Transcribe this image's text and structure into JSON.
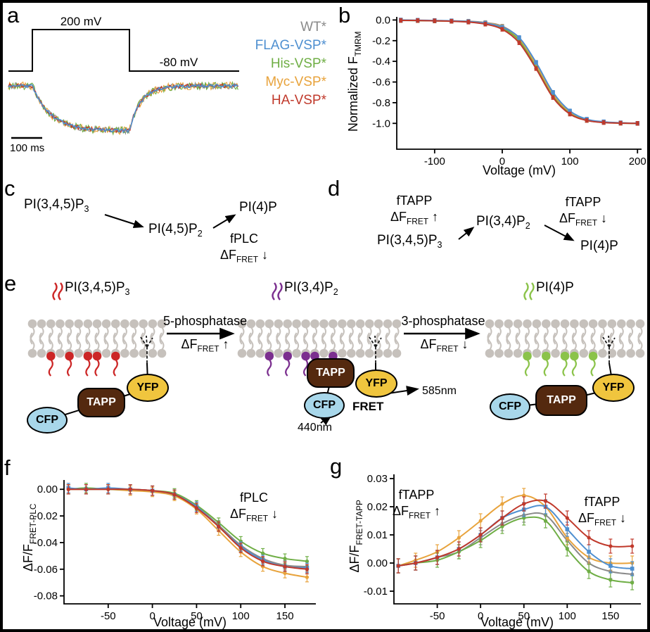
{
  "panels": {
    "a": "a",
    "b": "b",
    "c": "c",
    "d": "d",
    "e": "e",
    "f": "f",
    "g": "g"
  },
  "panel_a": {
    "step_high": "200 mV",
    "step_low": "-80 mV",
    "scalebar": "100 ms",
    "legend": [
      {
        "label": "WT*",
        "color": "#8a8a8a"
      },
      {
        "label": "FLAG-VSP*",
        "color": "#4e8fd0"
      },
      {
        "label": "His-VSP*",
        "color": "#6fae45"
      },
      {
        "label": "Myc-VSP*",
        "color": "#e8a33c"
      },
      {
        "label": "HA-VSP*",
        "color": "#c0392b"
      }
    ]
  },
  "panel_c": {
    "pip3": {
      "main": "PI(3,4,5)P",
      "sub": "3"
    },
    "pip2": {
      "main": "PI(4,5)P",
      "sub": "2"
    },
    "pi4p": "PI(4)P",
    "enzyme": "fPLC",
    "dfret": {
      "main": "ΔF",
      "sub": "FRET",
      "arrow": "↓"
    }
  },
  "panel_d": {
    "pip3": {
      "main": "PI(3,4,5)P",
      "sub": "3"
    },
    "pi34p2": {
      "main": "PI(3,4)P",
      "sub": "2"
    },
    "pi4p": "PI(4)P",
    "tag_up": {
      "line1": "fTAPP",
      "main": "ΔF",
      "sub": "FRET",
      "arrow": "↑"
    },
    "tag_down": {
      "line1": "fTAPP",
      "main": "ΔF",
      "sub": "FRET",
      "arrow": "↓"
    }
  },
  "panel_e": {
    "lipid1": {
      "main": "PI(3,4,5)P",
      "sub": "3",
      "color": "#cc2626"
    },
    "lipid2": {
      "main": "PI(3,4)P",
      "sub": "2",
      "color": "#7b2f8f"
    },
    "lipid3": {
      "main": "PI(4)P",
      "sub": "",
      "color": "#8bc34a"
    },
    "step1": {
      "line1": "5-phosphatase",
      "main": "ΔF",
      "sub": "FRET",
      "arrow": "↑"
    },
    "step2": {
      "line1": "3-phosphatase",
      "main": "ΔF",
      "sub": "FRET",
      "arrow": "↓"
    },
    "cfp": "CFP",
    "tapp": "TAPP",
    "yfp": "YFP",
    "fret": "FRET",
    "nm440": "440nm",
    "nm585": "585nm",
    "cfp_color": "#a8d7ea",
    "tapp_color": "#54290f",
    "yfp_color": "#f0c53e",
    "membrane_color": "#c6c1bc"
  },
  "chart_data": [
    {
      "id": "b",
      "type": "line",
      "xlabel": "Voltage (mV)",
      "ylabel_main": "Normalized F",
      "ylabel_sub": "TMRM",
      "xlim": [
        -156,
        206
      ],
      "ylim": [
        -1.25,
        0.03
      ],
      "xticks": [
        -100,
        0,
        100,
        200
      ],
      "xtick_labels": [
        "-100",
        "0",
        "100",
        "200"
      ],
      "yticks": [
        0,
        -0.2,
        -0.4,
        -0.6,
        -0.8,
        -1.0
      ],
      "ytick_labels": [
        "0.0",
        "-0.2",
        "-0.4",
        "-0.6",
        "-0.8",
        "-1.0"
      ],
      "err": 0.018,
      "x": [
        -150,
        -125,
        -100,
        -75,
        -50,
        -25,
        0,
        25,
        50,
        75,
        100,
        125,
        150,
        175,
        200
      ],
      "series": [
        {
          "name": "WT*",
          "color": "#8a8a8a",
          "marker": "circle",
          "y": [
            -0.005,
            -0.005,
            -0.008,
            -0.01,
            -0.012,
            -0.025,
            -0.06,
            -0.18,
            -0.44,
            -0.73,
            -0.9,
            -0.97,
            -0.99,
            -0.995,
            -1.0
          ]
        },
        {
          "name": "Myc-VSP*",
          "color": "#e8a33c",
          "marker": "circle",
          "y": [
            -0.002,
            -0.004,
            -0.007,
            -0.01,
            -0.015,
            -0.028,
            -0.065,
            -0.185,
            -0.43,
            -0.72,
            -0.895,
            -0.965,
            -0.988,
            -0.996,
            -1.0
          ]
        },
        {
          "name": "His-VSP*",
          "color": "#6fae45",
          "marker": "circle",
          "y": [
            -0.003,
            -0.006,
            -0.008,
            -0.012,
            -0.018,
            -0.035,
            -0.08,
            -0.2,
            -0.46,
            -0.74,
            -0.905,
            -0.97,
            -0.99,
            -0.998,
            -1.0
          ]
        },
        {
          "name": "FLAG-VSP*",
          "color": "#4e8fd0",
          "marker": "square",
          "y": [
            0.0,
            -0.002,
            -0.005,
            -0.008,
            -0.015,
            -0.03,
            -0.07,
            -0.17,
            -0.41,
            -0.7,
            -0.88,
            -0.96,
            -0.985,
            -0.995,
            -1.0
          ]
        },
        {
          "name": "HA-VSP*",
          "color": "#c0392b",
          "marker": "circle",
          "y": [
            -0.004,
            -0.005,
            -0.008,
            -0.012,
            -0.02,
            -0.04,
            -0.09,
            -0.22,
            -0.47,
            -0.75,
            -0.91,
            -0.972,
            -0.992,
            -0.998,
            -1.0
          ]
        }
      ]
    },
    {
      "id": "f",
      "type": "line",
      "xlabel": "Voltage (mV)",
      "ylabel_main": "ΔF/F",
      "ylabel_sub": "FRET-PLC",
      "annotation": {
        "line1": "fPLC",
        "main": "ΔF",
        "sub": "FRET",
        "arrow": "↓"
      },
      "xlim": [
        -100,
        185
      ],
      "ylim": [
        -0.086,
        0.007
      ],
      "xticks": [
        -50,
        0,
        50,
        100,
        150
      ],
      "xtick_labels": [
        "-50",
        "0",
        "50",
        "100",
        "150"
      ],
      "yticks": [
        0,
        -0.02,
        -0.04,
        -0.06,
        -0.08
      ],
      "ytick_labels": [
        "0.00",
        "-0.02",
        "-0.04",
        "-0.06",
        "-0.08"
      ],
      "err": 0.0035,
      "x": [
        -95,
        -75,
        -50,
        -25,
        0,
        25,
        50,
        75,
        100,
        125,
        150,
        175
      ],
      "series": [
        {
          "name": "WT*",
          "color": "#8a8a8a",
          "marker": "circle",
          "y": [
            0.0,
            0.0,
            0.0,
            0.0,
            -0.001,
            -0.004,
            -0.013,
            -0.027,
            -0.042,
            -0.052,
            -0.057,
            -0.058
          ]
        },
        {
          "name": "Myc-VSP*",
          "color": "#e8a33c",
          "marker": "circle",
          "y": [
            0.0,
            0.0,
            0.0,
            -0.001,
            -0.002,
            -0.005,
            -0.015,
            -0.031,
            -0.047,
            -0.058,
            -0.063,
            -0.066
          ]
        },
        {
          "name": "His-VSP*",
          "color": "#6fae45",
          "marker": "circle",
          "y": [
            0.0,
            0.001,
            0.0,
            0.0,
            -0.001,
            -0.003,
            -0.012,
            -0.025,
            -0.039,
            -0.048,
            -0.052,
            -0.054
          ]
        },
        {
          "name": "FLAG-VSP*",
          "color": "#4e8fd0",
          "marker": "square",
          "y": [
            0.001,
            0.0,
            0.001,
            0.0,
            -0.001,
            -0.004,
            -0.013,
            -0.028,
            -0.043,
            -0.053,
            -0.058,
            -0.059
          ]
        },
        {
          "name": "HA-VSP*",
          "color": "#c0392b",
          "marker": "circle",
          "y": [
            0.0,
            0.0,
            0.0,
            0.0,
            -0.001,
            -0.004,
            -0.014,
            -0.028,
            -0.044,
            -0.054,
            -0.058,
            -0.06
          ]
        }
      ]
    },
    {
      "id": "g",
      "type": "line",
      "xlabel": "Voltage (mV)",
      "ylabel_main": "ΔF/F",
      "ylabel_sub": "FRET-TAPP",
      "annotation_left": {
        "line1": "fTAPP",
        "main": "ΔF",
        "sub": "FRET",
        "arrow": "↑"
      },
      "annotation_right": {
        "line1": "fTAPP",
        "main": "ΔF",
        "sub": "FRET",
        "arrow": "↓"
      },
      "xlim": [
        -100,
        185
      ],
      "ylim": [
        -0.0145,
        0.0315
      ],
      "xticks": [
        -50,
        0,
        50,
        100,
        150
      ],
      "xtick_labels": [
        "-50",
        "0",
        "50",
        "100",
        "150"
      ],
      "yticks": [
        0.03,
        0.02,
        0.01,
        0,
        -0.01
      ],
      "ytick_labels": [
        "0.03",
        "0.02",
        "0.01",
        "0.00",
        "-0.01"
      ],
      "err": 0.0025,
      "x": [
        -95,
        -75,
        -50,
        -25,
        0,
        25,
        50,
        75,
        100,
        125,
        150,
        175
      ],
      "series": [
        {
          "name": "WT*",
          "color": "#8a8a8a",
          "marker": "circle",
          "y": [
            -0.001,
            0.0,
            0.002,
            0.004,
            0.009,
            0.014,
            0.017,
            0.017,
            0.008,
            0.0,
            -0.003,
            -0.004
          ]
        },
        {
          "name": "Myc-VSP*",
          "color": "#e8a33c",
          "marker": "circle",
          "y": [
            -0.001,
            0.001,
            0.004,
            0.009,
            0.015,
            0.021,
            0.024,
            0.02,
            0.009,
            0.002,
            0.0,
            0.0
          ]
        },
        {
          "name": "His-VSP*",
          "color": "#6fae45",
          "marker": "circle",
          "y": [
            -0.001,
            0.0,
            0.001,
            0.004,
            0.008,
            0.013,
            0.016,
            0.015,
            0.005,
            -0.003,
            -0.006,
            -0.007
          ]
        },
        {
          "name": "FLAG-VSP*",
          "color": "#4e8fd0",
          "marker": "square",
          "y": [
            -0.001,
            0.0,
            0.002,
            0.005,
            0.01,
            0.016,
            0.019,
            0.02,
            0.012,
            0.004,
            -0.001,
            -0.002
          ]
        },
        {
          "name": "HA-VSP*",
          "color": "#c0392b",
          "marker": "circle",
          "y": [
            -0.001,
            0.0,
            0.002,
            0.005,
            0.01,
            0.016,
            0.021,
            0.022,
            0.016,
            0.009,
            0.006,
            0.006
          ]
        }
      ]
    }
  ]
}
